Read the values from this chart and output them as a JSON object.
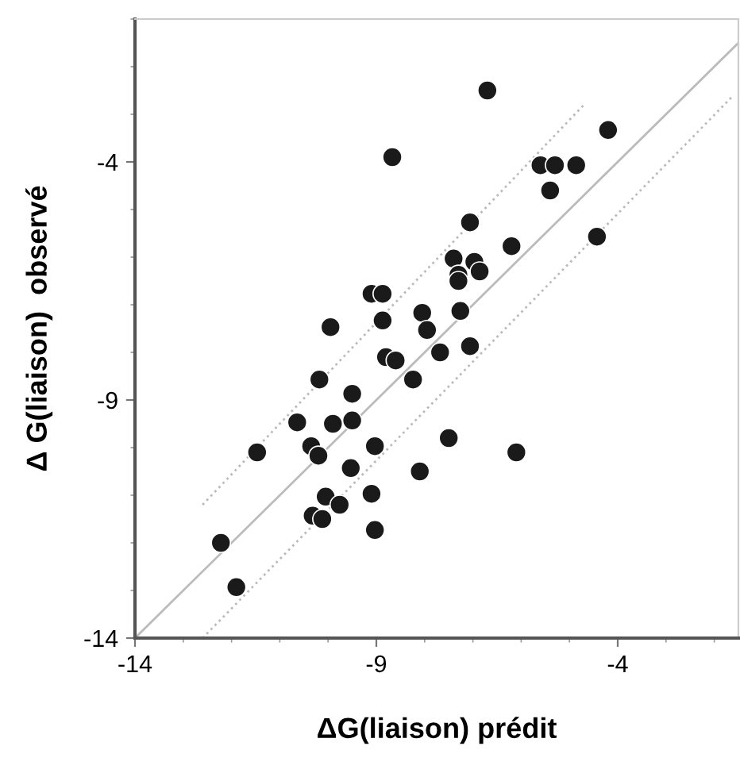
{
  "chart_data": {
    "type": "scatter",
    "xlabel": "ΔG(liaison) prédit",
    "ylabel": "Δ G(liaison)  observé",
    "xlim": [
      -14,
      -1.5
    ],
    "ylim": [
      -14,
      -1
    ],
    "xticks": [
      -14,
      -9,
      -4
    ],
    "yticks": [
      -14,
      -9,
      -4
    ],
    "grid": false,
    "series": [
      {
        "marker": "circle",
        "color": "#1a1a1a",
        "x": [
          -6.7,
          -8.67,
          -4.2,
          -5.6,
          -5.3,
          -4.86,
          -5.4,
          -7.06,
          -4.43,
          -6.2,
          -7.4,
          -7.3,
          -7.3,
          -6.97,
          -6.86,
          -9.1,
          -8.87,
          -8.87,
          -9.95,
          -7.26,
          -8.05,
          -7.95,
          -7.68,
          -7.06,
          -8.8,
          -8.6,
          -8.24,
          -10.18,
          -9.5,
          -10.64,
          -9.9,
          -9.5,
          -11.47,
          -10.35,
          -10.2,
          -9.03,
          -7.5,
          -6.1,
          -9.53,
          -8.1,
          -10.05,
          -9.76,
          -9.1,
          -10.32,
          -10.12,
          -9.03,
          -12.22,
          -11.9
        ],
        "values": [
          -2.5,
          -3.9,
          -3.33,
          -4.07,
          -4.07,
          -4.07,
          -4.6,
          -5.27,
          -5.57,
          -5.77,
          -6.03,
          -6.37,
          -6.5,
          -6.1,
          -6.3,
          -6.77,
          -6.77,
          -7.33,
          -7.47,
          -7.13,
          -7.17,
          -7.53,
          -8.0,
          -7.87,
          -8.1,
          -8.17,
          -8.57,
          -8.57,
          -8.87,
          -9.47,
          -9.5,
          -9.43,
          -10.1,
          -9.97,
          -10.17,
          -9.97,
          -9.8,
          -10.1,
          -10.43,
          -10.5,
          -11.03,
          -11.2,
          -10.97,
          -11.43,
          -11.5,
          -11.73,
          -12.0,
          -12.93
        ]
      },
      {
        "type": "line",
        "color": "#bbbbbb",
        "line_style": "solid",
        "marker": "none",
        "x": [
          -14,
          -1.5
        ],
        "values": [
          -14,
          -1.5
        ]
      },
      {
        "type": "line",
        "color": "#bbbbbb",
        "line_style": "dotted",
        "marker": "none",
        "x": [
          -12.6,
          -4.7
        ],
        "values": [
          -11.2,
          -2.8
        ]
      },
      {
        "type": "line",
        "color": "#bbbbbb",
        "line_style": "dotted",
        "marker": "none",
        "x": [
          -12.6,
          -1.6
        ],
        "values": [
          -14,
          -2.6
        ]
      }
    ]
  }
}
